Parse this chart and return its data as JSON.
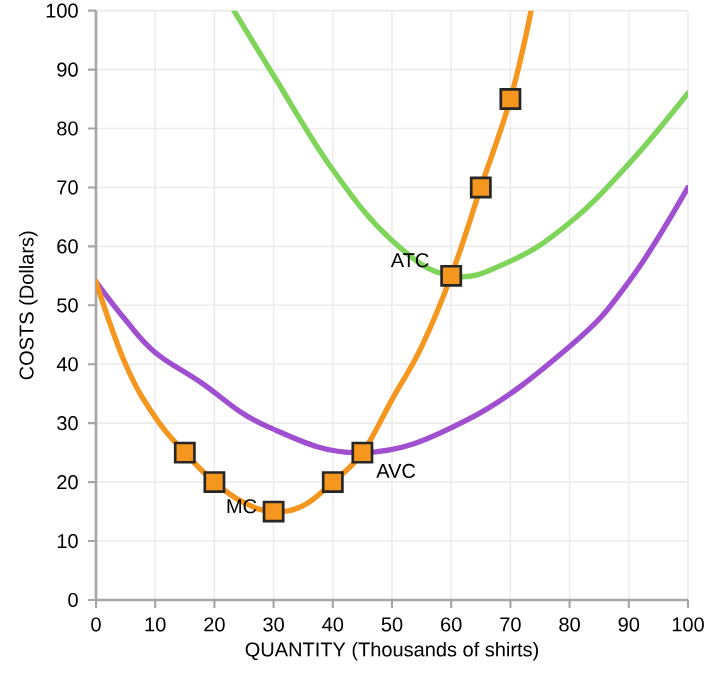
{
  "chart_data": {
    "type": "line",
    "xlabel": "QUANTITY (Thousands of shirts)",
    "ylabel": "COSTS (Dollars)",
    "xlim": [
      0,
      100
    ],
    "ylim": [
      0,
      100
    ],
    "xticks": [
      0,
      10,
      20,
      30,
      40,
      50,
      60,
      70,
      80,
      90,
      100
    ],
    "yticks": [
      0,
      10,
      20,
      30,
      40,
      50,
      60,
      70,
      80,
      90,
      100
    ],
    "grid": true,
    "marker": "none",
    "line_style": "solid",
    "series": [
      {
        "name": "ATC",
        "color": "#7ed55a",
        "x": [
          23.3,
          30,
          40,
          50,
          60,
          70,
          80,
          90,
          100
        ],
        "values": [
          100,
          89,
          73,
          61,
          55,
          57.5,
          64,
          74,
          86
        ]
      },
      {
        "name": "AVC",
        "color": "#a04fd0",
        "x": [
          0,
          5,
          10,
          17.6,
          28.8,
          45,
          62.6,
          80,
          90,
          100
        ],
        "values": [
          54,
          47.5,
          42,
          37,
          29.5,
          25,
          30.5,
          43,
          54,
          70
        ]
      },
      {
        "name": "MC",
        "color": "#f5961e",
        "x": [
          0,
          5,
          10,
          15,
          20,
          25,
          30,
          35,
          40,
          45,
          50,
          55,
          60,
          65,
          70,
          73.5
        ],
        "values": [
          54,
          40,
          31,
          25,
          20,
          16.5,
          15,
          16,
          20,
          25,
          34,
          43,
          55,
          70,
          85,
          100
        ]
      },
      {
        "type": "scatter",
        "color": "#f5961e",
        "marker": "square",
        "x": [
          15,
          20,
          30,
          40,
          45,
          60,
          65,
          70
        ],
        "values": [
          25,
          20,
          15,
          20,
          25,
          55,
          70,
          85
        ]
      }
    ]
  }
}
